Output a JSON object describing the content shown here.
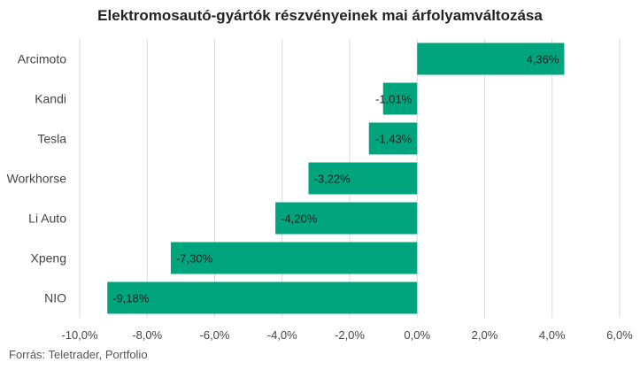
{
  "chart_data": {
    "type": "bar",
    "orientation": "horizontal",
    "title": "Elektromosautó-gyártók részvényeinek mai árfolyamváltozása",
    "categories": [
      "Arcimoto",
      "Kandi",
      "Tesla",
      "Workhorse",
      "Li Auto",
      "Xpeng",
      "NIO"
    ],
    "values": [
      4.36,
      -1.01,
      -1.43,
      -3.22,
      -4.2,
      -7.3,
      -9.18
    ],
    "value_labels": [
      "4,36%",
      "-1,01%",
      "-1,43%",
      "-3,22%",
      "-4,20%",
      "-7,30%",
      "-9,18%"
    ],
    "xlim": [
      -10,
      6
    ],
    "xticks": [
      -10,
      -8,
      -6,
      -4,
      -2,
      0,
      2,
      4,
      6
    ],
    "xtick_labels": [
      "-10,0%",
      "-8,0%",
      "-6,0%",
      "-4,0%",
      "-2,0%",
      "0,0%",
      "2,0%",
      "4,0%",
      "6,0%"
    ],
    "xlabel": "",
    "ylabel": "",
    "grid": "vertical",
    "bar_color": "#00a57d",
    "source": "Forrás: Teletrader, Portfolio"
  }
}
